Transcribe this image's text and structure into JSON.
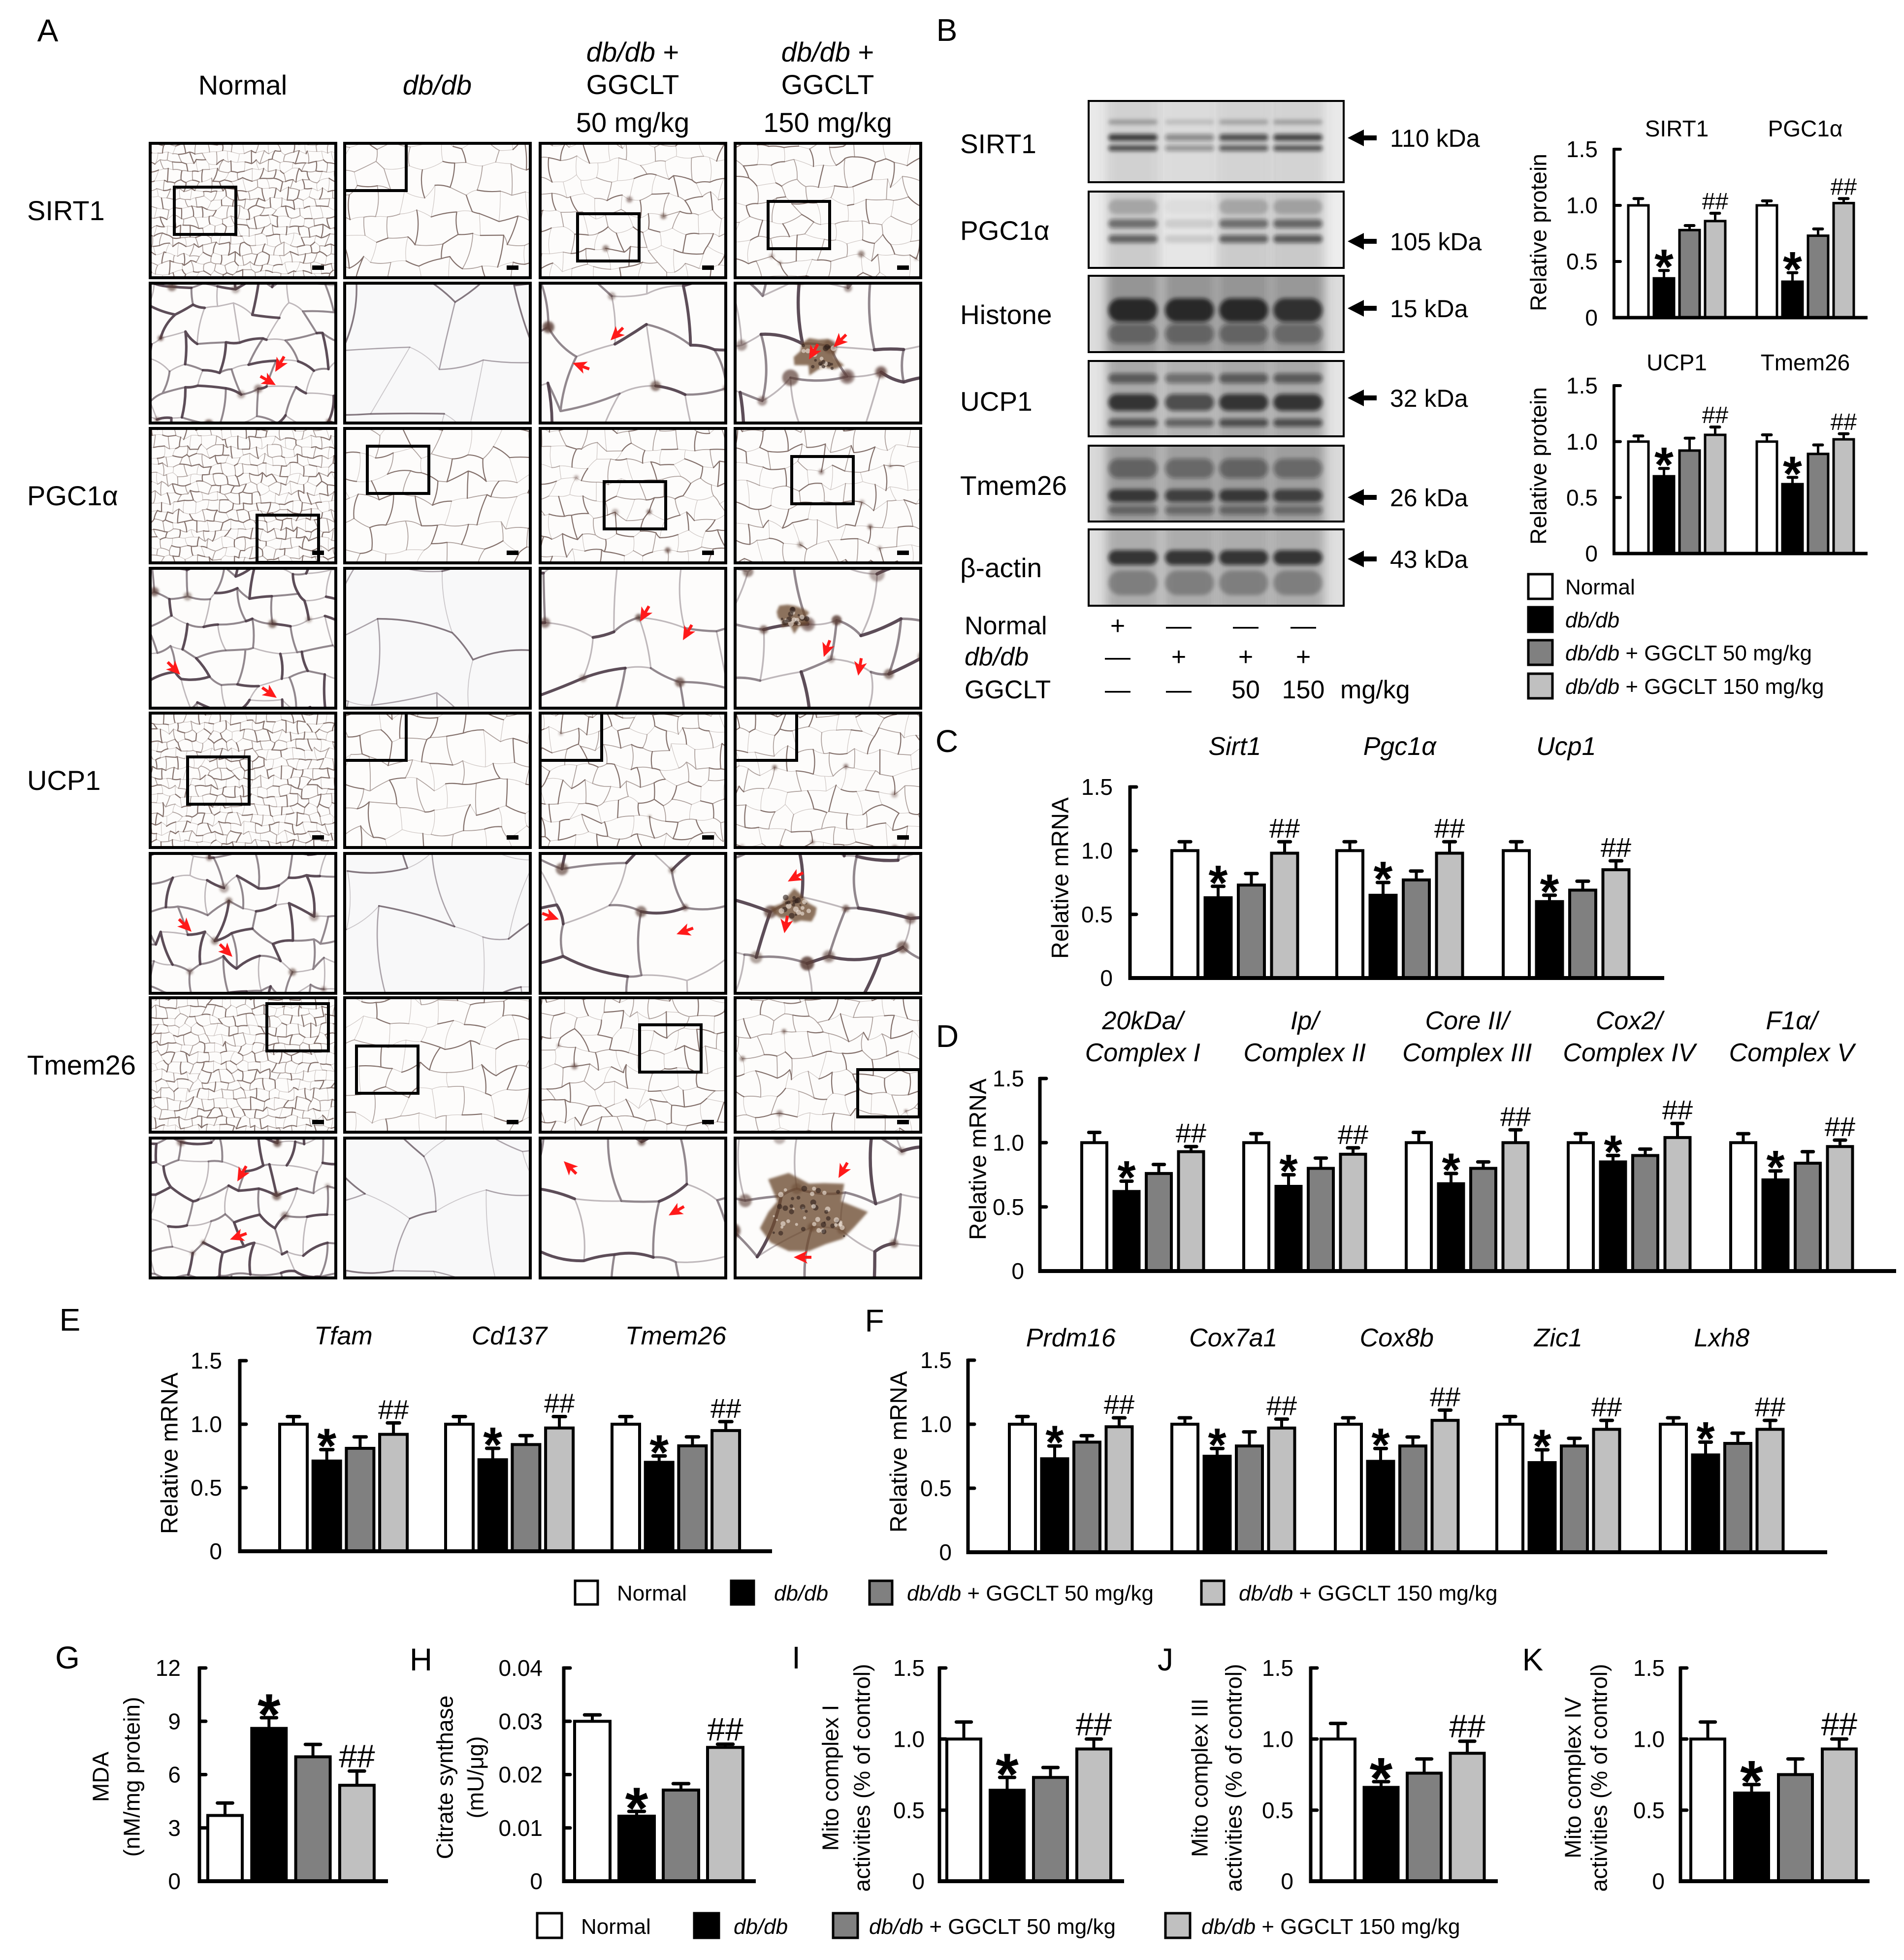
{
  "panel_a": {
    "letter": "A",
    "columns": [
      {
        "italic": "",
        "text": "Normal"
      },
      {
        "italic": "db/db",
        "text": ""
      },
      {
        "italic": "db/db",
        "text": " +",
        "line2": "GGCLT",
        "line3": "50 mg/kg"
      },
      {
        "italic": "db/db",
        "text": " +",
        "line2": "GGCLT",
        "line3": "150 mg/kg"
      }
    ],
    "rows": [
      "SIRT1",
      "PGC1α",
      "UCP1",
      "Tmem26"
    ]
  },
  "panel_b": {
    "letter": "B",
    "blots": [
      {
        "protein": "SIRT1",
        "size": "110 kDa",
        "lane_intensity": [
          0.85,
          0.45,
          0.75,
          0.8
        ]
      },
      {
        "protein": "PGC1α",
        "size": "105 kDa",
        "lane_intensity": [
          0.7,
          0.15,
          0.7,
          0.75
        ]
      },
      {
        "protein": "Histone",
        "size": "15 kDa",
        "lane_intensity": [
          0.9,
          0.9,
          0.9,
          0.85
        ]
      },
      {
        "protein": "UCP1",
        "size": "32 kDa",
        "lane_intensity": [
          0.85,
          0.7,
          0.85,
          0.85
        ]
      },
      {
        "protein": "Tmem26",
        "size": "26 kDa",
        "lane_intensity": [
          0.8,
          0.75,
          0.8,
          0.75
        ]
      },
      {
        "protein": "β-actin",
        "size": "43 kDa",
        "lane_intensity": [
          0.85,
          0.85,
          0.85,
          0.85
        ]
      }
    ],
    "treatment_table": [
      {
        "label": "Normal",
        "lanes": [
          "+",
          "—",
          "—",
          "—"
        ]
      },
      {
        "label": "db/db",
        "lanes": [
          "—",
          "+",
          "+",
          "+"
        ]
      },
      {
        "label": "GGCLT",
        "lanes": [
          "—",
          "—",
          "50",
          "150"
        ],
        "unit": "mg/kg"
      }
    ]
  },
  "legend": [
    {
      "italic": "",
      "text": "Normal",
      "color": "#ffffff"
    },
    {
      "italic": "db/db",
      "text": "",
      "color": "#000000"
    },
    {
      "italic": "db/db",
      "text": " + GGCLT 50 mg/kg",
      "color": "#808080"
    },
    {
      "italic": "db/db",
      "text": " + GGCLT 150 mg/kg",
      "color": "#c0c0c0"
    }
  ],
  "chart_data": [
    {
      "panel": "B",
      "type": "bar",
      "ylabel": "Relative protein",
      "ylim": [
        0,
        1.5
      ],
      "yticks": [
        0,
        0.5,
        1.0,
        1.5
      ],
      "ytick_labels": [
        "0",
        "0.5",
        "1.0",
        "1.5"
      ],
      "categories": [
        "SIRT1",
        "PGC1α"
      ],
      "series": [
        {
          "name": "Normal",
          "color": "#ffffff",
          "values": [
            1.0,
            1.0
          ],
          "errors": [
            0.06,
            0.04
          ]
        },
        {
          "name": "db/db",
          "color": "#000000",
          "values": [
            0.35,
            0.32
          ],
          "errors": [
            0.07,
            0.08
          ]
        },
        {
          "name": "db/db + GGCLT 50 mg/kg",
          "color": "#808080",
          "values": [
            0.78,
            0.73
          ],
          "errors": [
            0.04,
            0.06
          ]
        },
        {
          "name": "db/db + GGCLT 150 mg/kg",
          "color": "#c0c0c0",
          "values": [
            0.86,
            1.02
          ],
          "errors": [
            0.07,
            0.04
          ]
        }
      ],
      "markers": [
        [
          "",
          "*",
          "",
          "##"
        ],
        [
          "",
          "*",
          "",
          "##"
        ]
      ]
    },
    {
      "panel": "B",
      "type": "bar",
      "ylabel": "Relative protein",
      "ylim": [
        0,
        1.5
      ],
      "yticks": [
        0,
        0.5,
        1.0,
        1.5
      ],
      "ytick_labels": [
        "0",
        "0.5",
        "1.0",
        "1.5"
      ],
      "categories": [
        "UCP1",
        "Tmem26"
      ],
      "series": [
        {
          "name": "Normal",
          "color": "#ffffff",
          "values": [
            1.0,
            1.0
          ],
          "errors": [
            0.05,
            0.06
          ]
        },
        {
          "name": "db/db",
          "color": "#000000",
          "values": [
            0.69,
            0.62
          ],
          "errors": [
            0.07,
            0.06
          ]
        },
        {
          "name": "db/db + GGCLT 50 mg/kg",
          "color": "#808080",
          "values": [
            0.92,
            0.89
          ],
          "errors": [
            0.11,
            0.08
          ]
        },
        {
          "name": "db/db + GGCLT 150 mg/kg",
          "color": "#c0c0c0",
          "values": [
            1.06,
            1.02
          ],
          "errors": [
            0.07,
            0.05
          ]
        }
      ],
      "markers": [
        [
          "",
          "*",
          "",
          "##"
        ],
        [
          "",
          "*",
          "",
          "##"
        ]
      ]
    },
    {
      "panel": "C",
      "type": "bar",
      "ylabel": "Relative mRNA",
      "ylim": [
        0,
        1.5
      ],
      "yticks": [
        0,
        0.5,
        1.0,
        1.5
      ],
      "ytick_labels": [
        "0",
        "0.5",
        "1.0",
        "1.5"
      ],
      "categories": [
        "Sirt1",
        "Pgc1α",
        "Ucp1"
      ],
      "series": [
        {
          "name": "Normal",
          "color": "#ffffff",
          "values": [
            1.0,
            1.0,
            1.0
          ],
          "errors": [
            0.07,
            0.07,
            0.07
          ]
        },
        {
          "name": "db/db",
          "color": "#000000",
          "values": [
            0.63,
            0.65,
            0.6
          ],
          "errors": [
            0.09,
            0.1,
            0.05
          ]
        },
        {
          "name": "db/db + GGCLT 50 mg/kg",
          "color": "#808080",
          "values": [
            0.73,
            0.77,
            0.69
          ],
          "errors": [
            0.09,
            0.07,
            0.07
          ]
        },
        {
          "name": "db/db + GGCLT 150 mg/kg",
          "color": "#c0c0c0",
          "values": [
            0.98,
            0.98,
            0.85
          ],
          "errors": [
            0.09,
            0.09,
            0.07
          ]
        }
      ],
      "markers": [
        [
          "",
          "*",
          "",
          "##"
        ],
        [
          "",
          "*",
          "",
          "##"
        ],
        [
          "",
          "*",
          "",
          "##"
        ]
      ]
    },
    {
      "panel": "D",
      "type": "bar",
      "ylabel": "Relative mRNA",
      "ylim": [
        0,
        1.5
      ],
      "yticks": [
        0,
        0.5,
        1.0,
        1.5
      ],
      "ytick_labels": [
        "0",
        "0.5",
        "1.0",
        "1.5"
      ],
      "categories": [
        [
          "20kDa/",
          "Complex I"
        ],
        [
          "Ip/",
          "Complex II"
        ],
        [
          "Core II/",
          "Complex III"
        ],
        [
          "Cox2/",
          "Complex IV"
        ],
        [
          "F1α/",
          "Complex V"
        ]
      ],
      "series": [
        {
          "name": "Normal",
          "color": "#ffffff",
          "values": [
            1.0,
            1.0,
            1.0,
            1.0,
            1.0
          ],
          "errors": [
            0.08,
            0.07,
            0.08,
            0.07,
            0.07
          ]
        },
        {
          "name": "db/db",
          "color": "#000000",
          "values": [
            0.62,
            0.66,
            0.68,
            0.85,
            0.71
          ],
          "errors": [
            0.08,
            0.09,
            0.08,
            0.05,
            0.07
          ]
        },
        {
          "name": "db/db + GGCLT 50 mg/kg",
          "color": "#808080",
          "values": [
            0.76,
            0.8,
            0.8,
            0.9,
            0.84
          ],
          "errors": [
            0.07,
            0.08,
            0.05,
            0.05,
            0.09
          ]
        },
        {
          "name": "db/db + GGCLT 150 mg/kg",
          "color": "#c0c0c0",
          "values": [
            0.93,
            0.91,
            1.0,
            1.04,
            0.97
          ],
          "errors": [
            0.04,
            0.05,
            0.1,
            0.11,
            0.05
          ]
        }
      ],
      "markers": [
        [
          "",
          "*",
          "",
          "##"
        ],
        [
          "",
          "*",
          "",
          "##"
        ],
        [
          "",
          "*",
          "",
          "##"
        ],
        [
          "",
          "*",
          "",
          "##"
        ],
        [
          "",
          "*",
          "",
          "##"
        ]
      ]
    },
    {
      "panel": "E",
      "type": "bar",
      "ylabel": "Relative mRNA",
      "ylim": [
        0,
        1.5
      ],
      "yticks": [
        0,
        0.5,
        1.0,
        1.5
      ],
      "ytick_labels": [
        "0",
        "0.5",
        "1.0",
        "1.5"
      ],
      "categories": [
        "Tfam",
        "Cd137",
        "Tmem26"
      ],
      "series": [
        {
          "name": "Normal",
          "color": "#ffffff",
          "values": [
            1.0,
            1.0,
            1.0
          ],
          "errors": [
            0.06,
            0.06,
            0.06
          ]
        },
        {
          "name": "db/db",
          "color": "#000000",
          "values": [
            0.71,
            0.72,
            0.7
          ],
          "errors": [
            0.09,
            0.09,
            0.05
          ]
        },
        {
          "name": "db/db + GGCLT 50 mg/kg",
          "color": "#808080",
          "values": [
            0.81,
            0.84,
            0.83
          ],
          "errors": [
            0.09,
            0.07,
            0.07
          ]
        },
        {
          "name": "db/db + GGCLT 150 mg/kg",
          "color": "#c0c0c0",
          "values": [
            0.92,
            0.97,
            0.95
          ],
          "errors": [
            0.09,
            0.09,
            0.07
          ]
        }
      ],
      "markers": [
        [
          "",
          "*",
          "",
          "##"
        ],
        [
          "",
          "*",
          "",
          "##"
        ],
        [
          "",
          "*",
          "",
          "##"
        ]
      ]
    },
    {
      "panel": "F",
      "type": "bar",
      "ylabel": "Relative mRNA",
      "ylim": [
        0,
        1.5
      ],
      "yticks": [
        0,
        0.5,
        1.0,
        1.5
      ],
      "ytick_labels": [
        "0",
        "0.5",
        "1.0",
        "1.5"
      ],
      "categories": [
        "Prdm16",
        "Cox7a1",
        "Cox8b",
        "Zic1",
        "Lxh8"
      ],
      "series": [
        {
          "name": "Normal",
          "color": "#ffffff",
          "values": [
            1.0,
            1.0,
            1.0,
            1.0,
            1.0
          ],
          "errors": [
            0.06,
            0.05,
            0.05,
            0.06,
            0.05
          ]
        },
        {
          "name": "db/db",
          "color": "#000000",
          "values": [
            0.73,
            0.75,
            0.71,
            0.7,
            0.76
          ],
          "errors": [
            0.1,
            0.06,
            0.1,
            0.1,
            0.1
          ]
        },
        {
          "name": "db/db + GGCLT 50 mg/kg",
          "color": "#808080",
          "values": [
            0.86,
            0.83,
            0.83,
            0.83,
            0.85
          ],
          "errors": [
            0.05,
            0.11,
            0.07,
            0.06,
            0.08
          ]
        },
        {
          "name": "db/db + GGCLT 150 mg/kg",
          "color": "#c0c0c0",
          "values": [
            0.98,
            0.97,
            1.03,
            0.96,
            0.96
          ],
          "errors": [
            0.07,
            0.07,
            0.08,
            0.07,
            0.07
          ]
        }
      ],
      "markers": [
        [
          "",
          "*",
          "",
          "##"
        ],
        [
          "",
          "*",
          "",
          "##"
        ],
        [
          "",
          "*",
          "",
          "##"
        ],
        [
          "",
          "*",
          "",
          "##"
        ],
        [
          "",
          "*",
          "",
          "##"
        ]
      ]
    },
    {
      "panel": "G",
      "type": "bar",
      "ylabel": [
        "MDA",
        "(nM/mg protein)"
      ],
      "ylim": [
        0,
        12
      ],
      "yticks": [
        0,
        3,
        6,
        9,
        12
      ],
      "ytick_labels": [
        "0",
        "3",
        "6",
        "9",
        "12"
      ],
      "series": [
        {
          "name": "Normal",
          "color": "#ffffff",
          "values": [
            3.7
          ],
          "errors": [
            0.7
          ]
        },
        {
          "name": "db/db",
          "color": "#000000",
          "values": [
            8.6
          ],
          "errors": [
            0.6
          ]
        },
        {
          "name": "db/db + GGCLT 50 mg/kg",
          "color": "#808080",
          "values": [
            7.0
          ],
          "errors": [
            0.7
          ]
        },
        {
          "name": "db/db + GGCLT 150 mg/kg",
          "color": "#c0c0c0",
          "values": [
            5.4
          ],
          "errors": [
            0.8
          ]
        }
      ],
      "markers": [
        [
          "",
          "*",
          "",
          "##"
        ]
      ]
    },
    {
      "panel": "H",
      "type": "bar",
      "ylabel": [
        "Citrate synthase",
        "(mU/μg)"
      ],
      "ylim": [
        0,
        0.04
      ],
      "yticks": [
        0,
        0.01,
        0.02,
        0.03,
        0.04
      ],
      "ytick_labels": [
        "0",
        "0.01",
        "0.02",
        "0.03",
        "0.04"
      ],
      "series": [
        {
          "name": "Normal",
          "color": "#ffffff",
          "values": [
            0.03
          ],
          "errors": [
            0.0012
          ]
        },
        {
          "name": "db/db",
          "color": "#000000",
          "values": [
            0.0122
          ],
          "errors": [
            0.0009
          ]
        },
        {
          "name": "db/db + GGCLT 50 mg/kg",
          "color": "#808080",
          "values": [
            0.0171
          ],
          "errors": [
            0.0012
          ]
        },
        {
          "name": "db/db + GGCLT 150 mg/kg",
          "color": "#c0c0c0",
          "values": [
            0.0251
          ],
          "errors": [
            0.0006
          ]
        }
      ],
      "markers": [
        [
          "",
          "*",
          "",
          "##"
        ]
      ]
    },
    {
      "panel": "I",
      "type": "bar",
      "ylabel": [
        "Mito complex I",
        "activities (% of control)"
      ],
      "ylim": [
        0,
        1.5
      ],
      "yticks": [
        0,
        0.5,
        1.0,
        1.5
      ],
      "ytick_labels": [
        "0",
        "0.5",
        "1.0",
        "1.5"
      ],
      "series": [
        {
          "name": "Normal",
          "color": "#ffffff",
          "values": [
            1.0
          ],
          "errors": [
            0.12
          ]
        },
        {
          "name": "db/db",
          "color": "#000000",
          "values": [
            0.64
          ],
          "errors": [
            0.09
          ]
        },
        {
          "name": "db/db + GGCLT 50 mg/kg",
          "color": "#808080",
          "values": [
            0.73
          ],
          "errors": [
            0.07
          ]
        },
        {
          "name": "db/db + GGCLT 150 mg/kg",
          "color": "#c0c0c0",
          "values": [
            0.93
          ],
          "errors": [
            0.07
          ]
        }
      ],
      "markers": [
        [
          "",
          "*",
          "",
          "##"
        ]
      ]
    },
    {
      "panel": "J",
      "type": "bar",
      "ylabel": [
        "Mito complex III",
        "activities (% of control)"
      ],
      "ylim": [
        0,
        1.5
      ],
      "yticks": [
        0,
        0.5,
        1.0,
        1.5
      ],
      "ytick_labels": [
        "0",
        "0.5",
        "1.0",
        "1.5"
      ],
      "series": [
        {
          "name": "Normal",
          "color": "#ffffff",
          "values": [
            1.0
          ],
          "errors": [
            0.11
          ]
        },
        {
          "name": "db/db",
          "color": "#000000",
          "values": [
            0.66
          ],
          "errors": [
            0.04
          ]
        },
        {
          "name": "db/db + GGCLT 50 mg/kg",
          "color": "#808080",
          "values": [
            0.76
          ],
          "errors": [
            0.1
          ]
        },
        {
          "name": "db/db + GGCLT 150 mg/kg",
          "color": "#c0c0c0",
          "values": [
            0.9
          ],
          "errors": [
            0.085
          ]
        }
      ],
      "markers": [
        [
          "",
          "*",
          "",
          "##"
        ]
      ]
    },
    {
      "panel": "K",
      "type": "bar",
      "ylabel": [
        "Mito complex IV",
        "activities (% of control)"
      ],
      "ylim": [
        0,
        1.5
      ],
      "yticks": [
        0,
        0.5,
        1.0,
        1.5
      ],
      "ytick_labels": [
        "0",
        "0.5",
        "1.0",
        "1.5"
      ],
      "series": [
        {
          "name": "Normal",
          "color": "#ffffff",
          "values": [
            1.0
          ],
          "errors": [
            0.12
          ]
        },
        {
          "name": "db/db",
          "color": "#000000",
          "values": [
            0.62
          ],
          "errors": [
            0.06
          ]
        },
        {
          "name": "db/db + GGCLT 50 mg/kg",
          "color": "#808080",
          "values": [
            0.75
          ],
          "errors": [
            0.11
          ]
        },
        {
          "name": "db/db + GGCLT 150 mg/kg",
          "color": "#c0c0c0",
          "values": [
            0.93
          ],
          "errors": [
            0.07
          ]
        }
      ],
      "markers": [
        [
          "",
          "*",
          "",
          "##"
        ]
      ]
    }
  ]
}
